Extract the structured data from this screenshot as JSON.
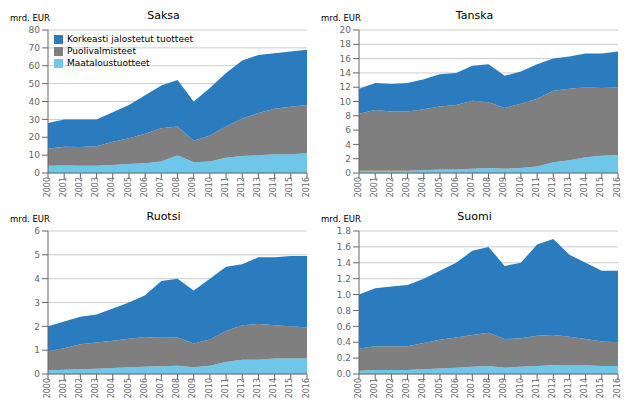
{
  "chart_data": [
    {
      "type": "area",
      "title": "Saksa",
      "ylabel": "mrd. EUR",
      "stacked": true,
      "grid": true,
      "legend": "upper left",
      "x": [
        2000,
        2001,
        2002,
        2003,
        2004,
        2005,
        2006,
        2007,
        2008,
        2009,
        2010,
        2011,
        2012,
        2013,
        2014,
        2015,
        2016
      ],
      "xlim": [
        2000,
        2016
      ],
      "xticks": [
        2000,
        2001,
        2002,
        2003,
        2004,
        2005,
        2006,
        2007,
        2008,
        2009,
        2010,
        2011,
        2012,
        2013,
        2014,
        2015,
        2016
      ],
      "ylim": [
        0,
        80
      ],
      "yticks": [
        0,
        10,
        20,
        30,
        40,
        50,
        60,
        70,
        80
      ],
      "series": [
        {
          "name": "Maataloustuotteet",
          "color": "#6EC6EA",
          "values": [
            4.0,
            4.2,
            4.0,
            4.0,
            4.5,
            5.0,
            5.5,
            6.5,
            10.0,
            6.0,
            6.5,
            8.5,
            9.5,
            10.0,
            10.5,
            10.5,
            11.0
          ]
        },
        {
          "name": "Puolivalmisteet",
          "color": "#7F7F7F",
          "values": [
            9.5,
            10.5,
            10.5,
            11.0,
            13.0,
            14.5,
            16.5,
            18.5,
            16.0,
            12.0,
            14.5,
            17.5,
            21.0,
            23.5,
            25.5,
            26.5,
            27.0
          ]
        },
        {
          "name": "Korkeasti jalostetut tuotteet",
          "color": "#2B7BBF",
          "values": [
            14.5,
            15.3,
            15.5,
            15.0,
            16.5,
            18.5,
            21.5,
            24.0,
            26.0,
            22.0,
            26.5,
            30.0,
            32.5,
            32.5,
            31.0,
            31.0,
            31.0
          ]
        }
      ]
    },
    {
      "type": "area",
      "title": "Tanska",
      "ylabel": "mrd. EUR",
      "stacked": true,
      "grid": true,
      "x": [
        2000,
        2001,
        2002,
        2003,
        2004,
        2005,
        2006,
        2007,
        2008,
        2009,
        2010,
        2011,
        2012,
        2013,
        2014,
        2015,
        2016
      ],
      "xlim": [
        2000,
        2016
      ],
      "xticks": [
        2000,
        2001,
        2002,
        2003,
        2004,
        2005,
        2006,
        2007,
        2008,
        2009,
        2010,
        2011,
        2012,
        2013,
        2014,
        2015,
        2016
      ],
      "ylim": [
        0,
        20
      ],
      "yticks": [
        0,
        2,
        4,
        6,
        8,
        10,
        12,
        14,
        16,
        18,
        20
      ],
      "series": [
        {
          "color": "#6EC6EA",
          "values": [
            0.3,
            0.3,
            0.3,
            0.3,
            0.4,
            0.5,
            0.5,
            0.6,
            0.7,
            0.6,
            0.7,
            0.9,
            1.5,
            1.8,
            2.2,
            2.4,
            2.5
          ]
        },
        {
          "color": "#7F7F7F",
          "values": [
            8.0,
            8.5,
            8.3,
            8.3,
            8.5,
            8.8,
            9.0,
            9.5,
            9.2,
            8.5,
            9.0,
            9.5,
            10.0,
            10.0,
            9.8,
            9.5,
            9.5
          ]
        },
        {
          "color": "#2B7BBF",
          "values": [
            3.5,
            3.8,
            3.9,
            4.0,
            4.2,
            4.5,
            4.5,
            4.9,
            5.3,
            4.5,
            4.5,
            4.8,
            4.5,
            4.5,
            4.7,
            4.8,
            5.0
          ]
        }
      ]
    },
    {
      "type": "area",
      "title": "Ruotsi",
      "ylabel": "mrd. EUR",
      "stacked": true,
      "grid": true,
      "x": [
        2000,
        2001,
        2002,
        2003,
        2004,
        2005,
        2006,
        2007,
        2008,
        2009,
        2010,
        2011,
        2012,
        2013,
        2014,
        2015,
        2016
      ],
      "xlim": [
        2000,
        2016
      ],
      "xticks": [
        2000,
        2001,
        2002,
        2003,
        2004,
        2005,
        2006,
        2007,
        2008,
        2009,
        2010,
        2011,
        2012,
        2013,
        2014,
        2015,
        2016
      ],
      "ylim": [
        0,
        6
      ],
      "yticks": [
        0,
        1,
        2,
        3,
        4,
        5,
        6
      ],
      "series": [
        {
          "color": "#6EC6EA",
          "values": [
            0.15,
            0.18,
            0.2,
            0.22,
            0.25,
            0.28,
            0.3,
            0.32,
            0.35,
            0.28,
            0.35,
            0.5,
            0.6,
            0.6,
            0.65,
            0.65,
            0.65
          ]
        },
        {
          "color": "#7F7F7F",
          "values": [
            0.8,
            0.9,
            1.05,
            1.1,
            1.15,
            1.2,
            1.25,
            1.2,
            1.18,
            1.0,
            1.1,
            1.3,
            1.45,
            1.5,
            1.4,
            1.35,
            1.3
          ]
        },
        {
          "color": "#2B7BBF",
          "values": [
            1.05,
            1.12,
            1.15,
            1.18,
            1.35,
            1.52,
            1.75,
            2.38,
            2.47,
            2.22,
            2.55,
            2.7,
            2.55,
            2.8,
            2.85,
            2.95,
            3.0
          ]
        }
      ]
    },
    {
      "type": "area",
      "title": "Suomi",
      "ylabel": "mrd. EUR",
      "stacked": true,
      "grid": true,
      "x": [
        2000,
        2001,
        2002,
        2003,
        2004,
        2005,
        2006,
        2007,
        2008,
        2009,
        2010,
        2011,
        2012,
        2013,
        2014,
        2015,
        2016
      ],
      "xlim": [
        2000,
        2016
      ],
      "xticks": [
        2000,
        2001,
        2002,
        2003,
        2004,
        2005,
        2006,
        2007,
        2008,
        2009,
        2010,
        2011,
        2012,
        2013,
        2014,
        2015,
        2016
      ],
      "ylim": [
        0,
        1.8
      ],
      "yticks": [
        {
          "value": 0.0,
          "label": "0.0"
        },
        0.2,
        0.4,
        0.6,
        0.8,
        {
          "value": 1.0,
          "label": "1.0"
        },
        1.2,
        1.4,
        1.6,
        1.8
      ],
      "series": [
        {
          "color": "#6EC6EA",
          "values": [
            0.04,
            0.05,
            0.05,
            0.05,
            0.06,
            0.07,
            0.08,
            0.09,
            0.1,
            0.08,
            0.09,
            0.1,
            0.11,
            0.11,
            0.11,
            0.1,
            0.1
          ]
        },
        {
          "color": "#7F7F7F",
          "values": [
            0.28,
            0.3,
            0.3,
            0.3,
            0.33,
            0.36,
            0.38,
            0.4,
            0.42,
            0.36,
            0.36,
            0.38,
            0.38,
            0.36,
            0.33,
            0.31,
            0.3
          ]
        },
        {
          "color": "#2B7BBF",
          "values": [
            0.68,
            0.73,
            0.75,
            0.77,
            0.81,
            0.87,
            0.94,
            1.06,
            1.08,
            0.92,
            0.95,
            1.15,
            1.21,
            1.03,
            0.96,
            0.89,
            0.9
          ]
        }
      ]
    }
  ]
}
